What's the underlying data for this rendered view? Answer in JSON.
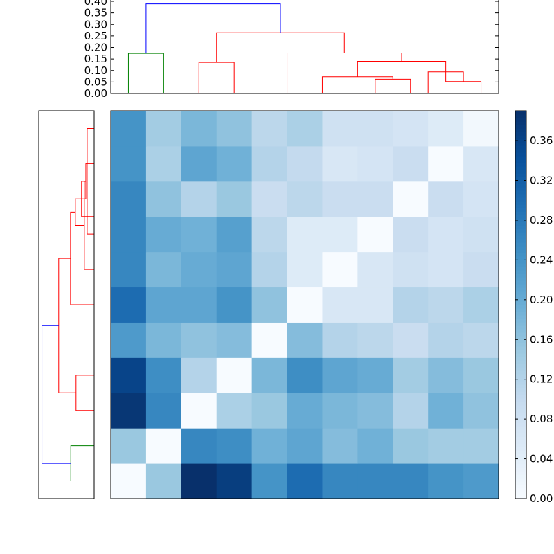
{
  "chart_data": [
    {
      "type": "dendrogram",
      "name": "top-dendrogram",
      "orientation": "top",
      "ylim": [
        0,
        0.4
      ],
      "yticks": [
        "0.00",
        "0.05",
        "0.10",
        "0.15",
        "0.20",
        "0.25",
        "0.30",
        "0.35",
        "0.40"
      ],
      "leaf_order": [
        0,
        1,
        2,
        3,
        4,
        5,
        6,
        7,
        8,
        9,
        10
      ],
      "links": [
        {
          "left": 7,
          "right": 8,
          "height": 0.062,
          "color": "#ff0000"
        },
        {
          "left": 5.5,
          "right": 7.5,
          "height": 0.073,
          "color": "#ff0000"
        },
        {
          "left": 9,
          "right": 10,
          "height": 0.052,
          "color": "#ff0000"
        },
        {
          "left": 8.5,
          "right": 9.5,
          "height": 0.094,
          "color": "#ff0000"
        },
        {
          "left": 6.5,
          "right": 9,
          "height": 0.14,
          "color": "#ff0000"
        },
        {
          "left": 4.5,
          "right": 7.75,
          "height": 0.176,
          "color": "#ff0000"
        },
        {
          "left": 2,
          "right": 3,
          "height": 0.135,
          "color": "#ff0000"
        },
        {
          "left": 2.5,
          "right": 6.125,
          "height": 0.264,
          "color": "#ff0000"
        },
        {
          "left": 0,
          "right": 1,
          "height": 0.174,
          "color": "#008000"
        },
        {
          "left": 0.5,
          "right": 4.3125,
          "height": 0.389,
          "color": "#0000ff"
        }
      ]
    },
    {
      "type": "dendrogram",
      "name": "left-dendrogram",
      "orientation": "left",
      "xlim": [
        0,
        0.4
      ],
      "links": [
        {
          "a": 8,
          "b": 9,
          "height": 0.062,
          "color": "#ff0000"
        },
        {
          "a": 6,
          "b": 8.5,
          "height": 0.073,
          "color": "#ff0000"
        },
        {
          "a": 7,
          "b": 10,
          "height": 0.052,
          "color": "#ff0000"
        },
        {
          "a": 7.5,
          "b": 8.5,
          "height": 0.094,
          "color": "#ff0000"
        },
        {
          "a": 7.25,
          "b": 8,
          "height": 0.14,
          "color": "#ff0000"
        },
        {
          "a": 5,
          "b": 7.625,
          "height": 0.176,
          "color": "#ff0000"
        },
        {
          "a": 2,
          "b": 3,
          "height": 0.135,
          "color": "#ff0000"
        },
        {
          "a": 2.5,
          "b": 6.3125,
          "height": 0.264,
          "color": "#ff0000"
        },
        {
          "a": 0,
          "b": 1,
          "height": 0.174,
          "color": "#008000"
        },
        {
          "a": 0.5,
          "b": 4.40625,
          "height": 0.389,
          "color": "#0000ff"
        }
      ]
    },
    {
      "type": "heatmap",
      "name": "distance-matrix",
      "colormap": "Blues",
      "vmin": 0,
      "vmax": 0.39,
      "rows_bottom_to_top": [
        [
          0.0,
          0.15,
          0.39,
          0.37,
          0.24,
          0.3,
          0.26,
          0.26,
          0.26,
          0.24,
          0.23
        ],
        [
          0.15,
          0.0,
          0.26,
          0.25,
          0.19,
          0.21,
          0.17,
          0.19,
          0.15,
          0.14,
          0.14
        ],
        [
          0.38,
          0.26,
          0.0,
          0.13,
          0.15,
          0.2,
          0.18,
          0.17,
          0.12,
          0.19,
          0.16
        ],
        [
          0.36,
          0.25,
          0.12,
          0.0,
          0.18,
          0.25,
          0.21,
          0.2,
          0.14,
          0.17,
          0.15
        ],
        [
          0.23,
          0.18,
          0.16,
          0.17,
          0.0,
          0.17,
          0.12,
          0.11,
          0.09,
          0.12,
          0.11
        ],
        [
          0.3,
          0.21,
          0.21,
          0.24,
          0.16,
          0.0,
          0.06,
          0.06,
          0.12,
          0.11,
          0.13
        ],
        [
          0.26,
          0.18,
          0.2,
          0.21,
          0.12,
          0.05,
          0.0,
          0.06,
          0.08,
          0.07,
          0.09
        ],
        [
          0.26,
          0.2,
          0.19,
          0.22,
          0.11,
          0.05,
          0.05,
          0.0,
          0.09,
          0.07,
          0.08
        ],
        [
          0.26,
          0.16,
          0.12,
          0.15,
          0.09,
          0.11,
          0.09,
          0.09,
          0.0,
          0.09,
          0.07
        ],
        [
          0.24,
          0.13,
          0.21,
          0.19,
          0.12,
          0.1,
          0.06,
          0.07,
          0.09,
          0.0,
          0.06
        ],
        [
          0.24,
          0.14,
          0.18,
          0.16,
          0.11,
          0.13,
          0.08,
          0.08,
          0.07,
          0.05,
          0.01
        ]
      ]
    },
    {
      "type": "colorbar",
      "name": "colorbar",
      "range": [
        0,
        0.39
      ],
      "ticks": [
        "0.00",
        "0.04",
        "0.08",
        "0.12",
        "0.16",
        "0.20",
        "0.24",
        "0.28",
        "0.32",
        "0.36"
      ],
      "tick_values": [
        0,
        0.04,
        0.08,
        0.12,
        0.16,
        0.2,
        0.24,
        0.28,
        0.32,
        0.36
      ]
    }
  ],
  "colors": {
    "blues": [
      "#f7fbff",
      "#deebf7",
      "#c6dbef",
      "#9ecae1",
      "#6baed6",
      "#4292c6",
      "#2171b5",
      "#08519c",
      "#08306b"
    ]
  }
}
